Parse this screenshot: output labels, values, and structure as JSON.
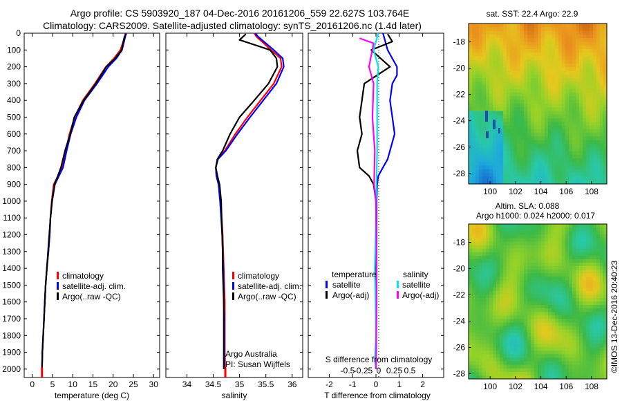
{
  "header": {
    "line1": "Argo profile: CS 5903920_187 04-Dec-2016 20161206_559 22.627S 103.764E",
    "line2": "Climatology: CARS2009. Satellite-adjusted climatology: synTS_20161206.nc (1.4d later)"
  },
  "colors": {
    "climatology": "#ff0000",
    "satellite": "#0000ff",
    "argo": "#000000",
    "sat_salinity": "#00e5e5",
    "argo_salinity": "#ff00ff"
  },
  "depth_axis": {
    "ylim": [
      0,
      2050
    ],
    "ticks": [
      "0",
      "100",
      "200",
      "300",
      "400",
      "500",
      "600",
      "700",
      "800",
      "900",
      "1000",
      "1100",
      "1200",
      "1300",
      "1400",
      "1500",
      "1600",
      "1700",
      "1800",
      "1900",
      "2000"
    ]
  },
  "panels": {
    "temperature": {
      "xlabel": "temperature (deg C)",
      "xlim": [
        -2,
        31.5
      ],
      "ticks": [
        "0",
        "5",
        "10",
        "15",
        "20",
        "25",
        "30"
      ],
      "legend": [
        "climatology",
        "satellite-adj. clim.",
        "Argo(..raw -QC)"
      ]
    },
    "salinity": {
      "xlabel": "salinity",
      "xlim": [
        33.6,
        36.2
      ],
      "ticks": [
        "34",
        "34.5",
        "35",
        "35.5",
        "36"
      ],
      "legend": [
        "climatology",
        "satellite-adj. clim.",
        "Argo(..raw -QC)"
      ],
      "note1": "Argo Australia",
      "note2": "PI: Susan Wijffels"
    },
    "difference": {
      "xlabel": "T difference from climatology",
      "xlabel2": "S difference from climatology",
      "xlim": [
        -2.9,
        2.9
      ],
      "ticks": [
        "-2",
        "-1",
        "0",
        "1",
        "2"
      ],
      "ticks2": [
        "-0.5",
        "-0.25",
        "0",
        "0.25",
        "0.5"
      ],
      "legend_temp_title": "temperature",
      "legend_sal_title": "salinity",
      "legend_temp": [
        "satellite",
        "Argo(-adj)"
      ],
      "legend_sal": [
        "satellite",
        "Argo(-adj)"
      ]
    }
  },
  "maps": {
    "sst": {
      "title": "sat. SST: 22.4  Argo: 22.9",
      "xticks": [
        "100",
        "102",
        "104",
        "106",
        "108"
      ],
      "yticks": [
        "-18",
        "-20",
        "-22",
        "-24",
        "-26",
        "-28"
      ]
    },
    "sla": {
      "title1": "Altim. SLA: 0.088",
      "title2": "Argo h1000: 0.024 h2000: 0.017",
      "xticks": [
        "100",
        "102",
        "104",
        "106",
        "108"
      ],
      "yticks": [
        "-18",
        "-20",
        "-22",
        "-24",
        "-26",
        "-28"
      ]
    },
    "credit": "©IMOS 13-Dec-2016 20:40:23"
  },
  "chart_data": [
    {
      "type": "line",
      "panel": "temperature",
      "xlabel": "temperature (deg C)",
      "ylim": [
        0,
        2050
      ],
      "series": [
        {
          "name": "climatology",
          "color": "#ff0000",
          "x": [
            23.0,
            22.9,
            21.8,
            20.2,
            18.2,
            15.5,
            12.5,
            10.5,
            9.2,
            8.3,
            7.4,
            6.4,
            5.3,
            4.8,
            4.5,
            4.3,
            4.0,
            3.6,
            3.3,
            3.1,
            2.9,
            2.7,
            2.5,
            2.4
          ],
          "depth": [
            0,
            20,
            100,
            150,
            200,
            300,
            400,
            500,
            600,
            700,
            800,
            850,
            900,
            1000,
            1100,
            1200,
            1300,
            1400,
            1500,
            1600,
            1700,
            1800,
            1900,
            2030
          ]
        },
        {
          "name": "satellite-adj. clim.",
          "color": "#0000ff",
          "x": [
            23.2,
            23.0,
            22.2,
            20.8,
            18.8,
            16.0,
            12.9,
            10.9,
            9.5,
            8.5,
            7.6,
            6.6,
            5.6,
            4.9,
            4.5,
            4.3,
            4.0,
            3.6,
            3.3,
            3.1,
            2.9,
            2.7,
            2.5,
            2.4
          ],
          "depth": [
            0,
            20,
            100,
            150,
            200,
            300,
            400,
            500,
            600,
            700,
            800,
            850,
            900,
            1000,
            1100,
            1200,
            1300,
            1400,
            1500,
            1600,
            1700,
            1800,
            1900,
            2030
          ]
        },
        {
          "name": "Argo(..raw -QC)",
          "color": "#000000",
          "x": [
            23.3,
            22.8,
            22.1,
            20.5,
            18.3,
            15.7,
            12.7,
            10.4,
            9.4,
            8.1,
            7.1,
            6.3,
            5.5,
            4.9,
            4.5,
            4.2,
            3.9,
            3.6,
            3.3,
            3.1,
            2.9,
            2.7,
            2.5,
            2.4
          ],
          "depth": [
            5,
            20,
            100,
            150,
            200,
            300,
            400,
            500,
            600,
            700,
            800,
            850,
            900,
            1000,
            1100,
            1200,
            1300,
            1400,
            1500,
            1600,
            1700,
            1800,
            1900,
            2000
          ]
        }
      ]
    },
    {
      "type": "line",
      "panel": "salinity",
      "xlabel": "salinity",
      "ylim": [
        0,
        2050
      ],
      "series": [
        {
          "name": "climatology",
          "color": "#ff0000",
          "x": [
            35.28,
            35.32,
            35.6,
            35.78,
            35.8,
            35.65,
            35.4,
            35.15,
            34.92,
            34.72,
            34.58,
            34.55,
            34.56,
            34.6,
            34.64,
            34.66,
            34.68,
            34.69,
            34.7,
            34.71,
            34.72,
            34.72,
            34.72,
            34.73
          ],
          "depth": [
            0,
            20,
            100,
            150,
            200,
            300,
            400,
            500,
            600,
            700,
            750,
            800,
            850,
            900,
            1000,
            1100,
            1200,
            1300,
            1400,
            1500,
            1600,
            1700,
            1900,
            2030
          ]
        },
        {
          "name": "satellite-adj. clim.",
          "color": "#0000ff",
          "x": [
            35.3,
            35.35,
            35.65,
            35.82,
            35.84,
            35.7,
            35.45,
            35.2,
            34.96,
            34.74,
            34.59,
            34.55,
            34.56,
            34.6,
            34.63,
            34.65,
            34.67,
            34.68,
            34.69,
            34.7,
            34.7,
            34.71,
            34.71,
            34.71
          ],
          "depth": [
            0,
            20,
            100,
            150,
            200,
            300,
            400,
            500,
            600,
            700,
            750,
            800,
            850,
            900,
            1000,
            1100,
            1200,
            1300,
            1400,
            1500,
            1600,
            1700,
            1900,
            2000
          ]
        },
        {
          "name": "Argo(..raw -QC)",
          "color": "#000000",
          "x": [
            35.12,
            35.0,
            35.58,
            35.7,
            35.72,
            35.55,
            35.28,
            35.0,
            34.82,
            34.68,
            34.58,
            34.55,
            34.58,
            34.62,
            34.65,
            34.66,
            34.67,
            34.68,
            34.68,
            34.69,
            34.7,
            34.7,
            34.7,
            34.7
          ],
          "depth": [
            5,
            40,
            100,
            150,
            200,
            300,
            400,
            500,
            600,
            700,
            750,
            800,
            850,
            900,
            1000,
            1100,
            1200,
            1300,
            1400,
            1500,
            1600,
            1700,
            1900,
            2000
          ]
        }
      ]
    },
    {
      "type": "line",
      "panel": "difference",
      "xlabel": "T difference from climatology",
      "ylim": [
        0,
        2050
      ],
      "series": [
        {
          "name": "temperature satellite",
          "color": "#0000ff",
          "x": [
            0.3,
            0.5,
            0.9,
            0.9,
            0.7,
            0.6,
            0.7,
            0.8,
            0.6,
            0.5,
            0.3,
            0.1,
            0.05,
            0.03,
            0.02,
            0.02,
            0.0
          ],
          "depth": [
            0,
            100,
            200,
            250,
            300,
            400,
            500,
            600,
            700,
            750,
            800,
            850,
            900,
            1000,
            1200,
            1500,
            2000
          ]
        },
        {
          "name": "temperature Argo(-adj)",
          "color": "#000000",
          "x": [
            0.5,
            0.7,
            -0.2,
            0.6,
            -0.5,
            -0.6,
            -0.7,
            -0.6,
            -0.8,
            -0.7,
            -0.3,
            -0.1,
            0.0,
            0.02,
            0.0,
            0.0
          ],
          "depth": [
            5,
            50,
            100,
            200,
            300,
            400,
            500,
            600,
            700,
            800,
            850,
            900,
            1000,
            1200,
            1500,
            2000
          ]
        },
        {
          "name": "salinity satellite",
          "color": "#00e5e5",
          "x": [
            0.1,
            -0.1,
            0.1,
            0.05,
            0.05,
            0.05,
            0.02,
            0.0,
            -0.05,
            -0.02,
            0.0,
            -0.05,
            0.0
          ],
          "depth": [
            0,
            100,
            200,
            300,
            500,
            700,
            900,
            1100,
            1400,
            1600,
            1800,
            1950,
            2000
          ]
        },
        {
          "name": "salinity Argo(-adj)",
          "color": "#ff00ff",
          "x": [
            -0.7,
            -0.1,
            -0.3,
            -0.1,
            -0.15,
            -0.05,
            -0.08,
            0.0,
            0.03,
            0.02,
            0.0
          ],
          "depth": [
            30,
            60,
            200,
            300,
            500,
            700,
            900,
            1000,
            1400,
            1700,
            2000
          ]
        }
      ]
    }
  ]
}
